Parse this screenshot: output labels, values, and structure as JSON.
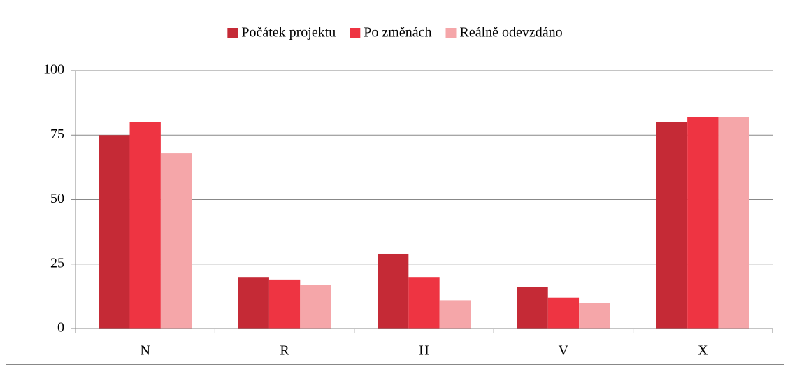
{
  "chart_data": {
    "type": "bar",
    "categories": [
      "N",
      "R",
      "H",
      "V",
      "X"
    ],
    "series": [
      {
        "name": "Počátek projektu",
        "color": "#c52a36",
        "values": [
          75,
          20,
          29,
          16,
          80
        ]
      },
      {
        "name": "Po změnách",
        "color": "#ee3442",
        "values": [
          80,
          19,
          20,
          12,
          82
        ]
      },
      {
        "name": "Reálně odevzdáno",
        "color": "#f5a6a9",
        "values": [
          68,
          17,
          11,
          10,
          82
        ]
      }
    ],
    "ylim": [
      0,
      100
    ],
    "yticks": [
      0,
      25,
      50,
      75,
      100
    ],
    "grid": true,
    "legend": "top"
  }
}
